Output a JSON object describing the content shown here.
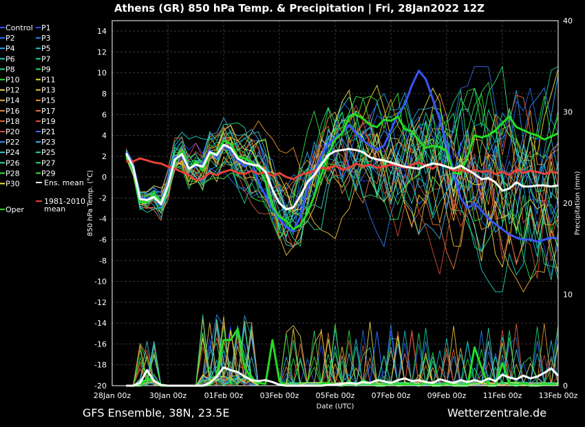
{
  "title": "Athens  (GR)  850 hPa Temp. & Precipitation | Fri, 28Jan2022 12Z",
  "footer_left": "GFS Ensemble, 38N, 23.5E",
  "footer_right": "Wetterzentrale.de",
  "colors": {
    "background": "#000000",
    "ens_mean": "#ffffff",
    "climate_mean": "#e8403a",
    "oper": "#22dd22",
    "control": "#3a56ff"
  },
  "chart_data": {
    "type": "line",
    "title": "Athens  (GR)  850 hPa Temp. & Precipitation | Fri, 28Jan2022 12Z",
    "xlabel": "Date (UTC)",
    "ylabel": "850 hPa Temp. (°C)",
    "y2label": "Precipitation (mm)",
    "grid": true,
    "legend_placement": "left, outside plot",
    "ylim": [
      -20,
      15
    ],
    "y2lim": [
      0,
      40
    ],
    "xlim": [
      "2022-01-28 00:00",
      "2022-02-13 00:00"
    ],
    "x_ticks": [
      "28Jan 00z",
      "30Jan 00z",
      "01Feb 00z",
      "03Feb 00z",
      "05Feb 00z",
      "07Feb 00z",
      "09Feb 00z",
      "11Feb 00z",
      "13Feb 00z"
    ],
    "y_ticks": [
      "14",
      "12",
      "10",
      "8",
      "6",
      "4",
      "2",
      "0",
      "-2",
      "-4",
      "-6",
      "-8",
      "-10",
      "-12",
      "-14",
      "-16",
      "-18",
      "-20"
    ],
    "y2_ticks": [
      "40",
      "30",
      "20",
      "10",
      "0"
    ],
    "legend": [
      {
        "label": "Control",
        "color": "#3a56ff"
      },
      {
        "label": "P1",
        "color": "#2b4bff"
      },
      {
        "label": "P2",
        "color": "#1e6cf0"
      },
      {
        "label": "P3",
        "color": "#2a84f7"
      },
      {
        "label": "P4",
        "color": "#28a5ee"
      },
      {
        "label": "P5",
        "color": "#21bfe0"
      },
      {
        "label": "P6",
        "color": "#19d3c4"
      },
      {
        "label": "P7",
        "color": "#17d6a2"
      },
      {
        "label": "P8",
        "color": "#1fdc82"
      },
      {
        "label": "P9",
        "color": "#27e05f"
      },
      {
        "label": "P10",
        "color": "#35e53c"
      },
      {
        "label": "P11",
        "color": "#f2e82a"
      },
      {
        "label": "P12",
        "color": "#f5d64e"
      },
      {
        "label": "P13",
        "color": "#f2c43a"
      },
      {
        "label": "P14",
        "color": "#f0b03a"
      },
      {
        "label": "P15",
        "color": "#f29a2e"
      },
      {
        "label": "P16",
        "color": "#ee8a48"
      },
      {
        "label": "P17",
        "color": "#ec7a3c"
      },
      {
        "label": "P18",
        "color": "#e9673a"
      },
      {
        "label": "P19",
        "color": "#e05438"
      },
      {
        "label": "P20",
        "color": "#d84a3a"
      },
      {
        "label": "P21",
        "color": "#3a6cf0"
      },
      {
        "label": "P22",
        "color": "#3d8cf2"
      },
      {
        "label": "P23",
        "color": "#40b0f0"
      },
      {
        "label": "P24",
        "color": "#3ccbd8"
      },
      {
        "label": "P25",
        "color": "#30d8b0"
      },
      {
        "label": "P26",
        "color": "#2adc90"
      },
      {
        "label": "P27",
        "color": "#2ee070"
      },
      {
        "label": "P28",
        "color": "#36e250"
      },
      {
        "label": "P29",
        "color": "#3ee432"
      },
      {
        "label": "P30",
        "color": "#f4e84a"
      },
      {
        "label": "Ens. mean",
        "color": "#ffffff"
      },
      {
        "label": "1981-2010 mean",
        "color": "#e8403a"
      },
      {
        "label": "Oper",
        "color": "#22dd22"
      }
    ],
    "days_axis_unit": "days after 28Jan 00z",
    "series": [
      {
        "name": "Ens. mean",
        "role": "temp",
        "x": [
          0.5,
          0.75,
          1,
          1.25,
          1.5,
          1.75,
          2,
          2.25,
          2.5,
          2.75,
          3,
          3.25,
          3.5,
          3.75,
          4,
          4.25,
          4.5,
          4.75,
          5,
          5.25,
          5.5,
          5.75,
          6,
          6.25,
          6.5,
          6.75,
          7,
          7.25,
          7.5,
          7.75,
          8,
          8.25,
          8.5,
          8.75,
          9,
          9.25,
          9.5,
          9.75,
          10,
          10.25,
          10.5,
          10.75,
          11,
          11.25,
          11.5,
          11.75,
          12,
          12.25,
          12.5,
          12.75,
          13,
          13.25,
          13.5,
          13.75,
          14,
          14.25,
          14.5,
          14.75,
          15,
          15.25,
          15.5,
          15.75,
          16
        ],
        "y": [
          2.3,
          1.0,
          -2.1,
          -2.2,
          -1.9,
          -2.6,
          -0.8,
          1.7,
          2.2,
          0.8,
          1.2,
          1.0,
          2.4,
          2.1,
          3.1,
          2.8,
          1.8,
          1.4,
          1.2,
          1.1,
          0.5,
          -1.2,
          -2.5,
          -3.1,
          -2.9,
          -1.8,
          -0.5,
          0.2,
          1.2,
          2.1,
          2.5,
          2.6,
          2.7,
          2.6,
          2.4,
          1.9,
          1.7,
          1.6,
          1.4,
          1.2,
          1.0,
          0.9,
          0.8,
          1.1,
          1.3,
          1.2,
          1.0,
          0.8,
          1.1,
          0.7,
          0.3,
          -0.2,
          -0.1,
          -0.5,
          -1.3,
          -1.1,
          -0.5,
          -0.9,
          -0.9,
          -0.8,
          -0.8,
          -0.9,
          -0.8
        ]
      },
      {
        "name": "1981-2010 mean",
        "role": "temp",
        "x": [
          0.5,
          0.75,
          1,
          1.25,
          1.5,
          1.75,
          2,
          2.25,
          2.5,
          2.75,
          3,
          3.25,
          3.5,
          3.75,
          4,
          4.25,
          4.5,
          4.75,
          5,
          5.25,
          5.5,
          5.75,
          6,
          6.25,
          6.5,
          6.75,
          7,
          7.25,
          7.5,
          7.75,
          8,
          8.25,
          8.5,
          8.75,
          9,
          9.25,
          9.5,
          9.75,
          10,
          10.25,
          10.5,
          10.75,
          11,
          11.25,
          11.5,
          11.75,
          12,
          12.25,
          12.5,
          12.75,
          13,
          13.25,
          13.5,
          13.75,
          14,
          14.25,
          14.5,
          14.75,
          15,
          15.25,
          15.5,
          15.75,
          16
        ],
        "y": [
          1.5,
          1.5,
          1.8,
          1.6,
          1.4,
          1.3,
          1.0,
          0.8,
          0.5,
          0.2,
          -0.3,
          -0.1,
          0.4,
          0.2,
          0.5,
          0.7,
          0.4,
          0.3,
          0.6,
          0.3,
          0.5,
          0.1,
          0.4,
          0.0,
          -0.2,
          0.2,
          0.4,
          0.6,
          0.9,
          0.8,
          1.1,
          0.7,
          0.9,
          1.3,
          1.0,
          1.2,
          0.9,
          1.0,
          1.2,
          1.1,
          0.9,
          1.2,
          1.4,
          1.1,
          0.8,
          1.3,
          1.0,
          0.6,
          0.7,
          0.5,
          0.7,
          0.5,
          0.6,
          0.3,
          0.5,
          0.2,
          0.7,
          0.4,
          0.6,
          0.5,
          0.3,
          0.5,
          0.4
        ]
      },
      {
        "name": "Oper",
        "role": "temp",
        "x": [
          0.5,
          0.75,
          1,
          1.25,
          1.5,
          1.75,
          2,
          2.25,
          2.5,
          2.75,
          3,
          3.25,
          3.5,
          3.75,
          4,
          4.25,
          4.5,
          4.75,
          5,
          5.25,
          5.5,
          5.75,
          6,
          6.25,
          6.5,
          6.75,
          7,
          7.25,
          7.5,
          7.75,
          8,
          8.25,
          8.5,
          8.75,
          9,
          9.25,
          9.5,
          9.75,
          10,
          10.25,
          10.5,
          10.75,
          11,
          11.25,
          11.5,
          11.75,
          12,
          12.25,
          12.5,
          12.75,
          13,
          13.25,
          13.5,
          13.75,
          14,
          14.25,
          14.5,
          14.75,
          15,
          15.25,
          15.5,
          15.75,
          16
        ],
        "y": [
          2.1,
          0.8,
          -2.4,
          -2.4,
          -1.5,
          -2.6,
          -1.0,
          1.5,
          2.5,
          0.7,
          1.5,
          0.6,
          2.2,
          2.3,
          3.5,
          3.2,
          2.0,
          1.8,
          1.4,
          0.8,
          -0.4,
          -2.8,
          -3.8,
          -4.2,
          -5.0,
          -4.6,
          -3.5,
          -1.8,
          0.2,
          2.2,
          3.6,
          4.2,
          5.8,
          6.0,
          5.6,
          5.0,
          4.8,
          5.5,
          5.4,
          5.8,
          4.6,
          4.4,
          3.5,
          2.8,
          3.0,
          2.9,
          2.5,
          0.4,
          0.3,
          2.0,
          4.0,
          3.8,
          4.0,
          4.5,
          5.2,
          5.8,
          4.8,
          4.5,
          4.2,
          4.0,
          3.6,
          3.9,
          4.2
        ]
      },
      {
        "name": "Control",
        "role": "temp",
        "x": [
          0.5,
          0.75,
          1,
          1.25,
          1.5,
          1.75,
          2,
          2.25,
          2.5,
          2.75,
          3,
          3.25,
          3.5,
          3.75,
          4,
          4.25,
          4.5,
          4.75,
          5,
          5.25,
          5.5,
          5.75,
          6,
          6.25,
          6.5,
          6.75,
          7,
          7.25,
          7.5,
          7.75,
          8,
          8.25,
          8.5,
          8.75,
          9,
          9.25,
          9.5,
          9.75,
          10,
          10.25,
          10.5,
          10.75,
          11,
          11.25,
          11.5,
          11.75,
          12,
          12.25,
          12.5,
          12.75,
          13,
          13.25,
          13.5,
          13.75,
          14,
          14.25,
          14.5,
          14.75,
          15,
          15.25,
          15.5,
          15.75,
          16
        ],
        "y": [
          2.4,
          1.2,
          -2.0,
          -2.1,
          -1.8,
          -2.8,
          -0.5,
          1.9,
          2.0,
          0.9,
          1.0,
          1.3,
          2.6,
          1.9,
          3.0,
          2.6,
          1.6,
          1.0,
          1.5,
          -0.5,
          -1.8,
          -3.0,
          -4.0,
          -4.8,
          -5.2,
          -3.8,
          -1.2,
          0.5,
          2.0,
          3.2,
          3.8,
          4.2,
          5.0,
          4.2,
          3.5,
          3.0,
          2.6,
          3.0,
          4.5,
          6.0,
          7.0,
          8.8,
          10.2,
          9.4,
          7.5,
          5.5,
          3.2,
          0.6,
          -2.0,
          -3.0,
          -2.5,
          -3.2,
          -4.0,
          -4.5,
          -5.0,
          -5.5,
          -5.8,
          -6.0,
          -6.0,
          -6.2,
          -6.0,
          -5.8,
          -5.9
        ]
      },
      {
        "name": "Ens. mean precip",
        "role": "precip",
        "x": [
          0.5,
          0.75,
          1,
          1.25,
          1.5,
          1.75,
          2,
          2.25,
          2.5,
          2.75,
          3,
          3.25,
          3.5,
          3.75,
          4,
          4.25,
          4.5,
          4.75,
          5,
          5.25,
          5.5,
          5.75,
          6,
          6.25,
          6.5,
          6.75,
          7,
          7.25,
          7.5,
          7.75,
          8,
          8.25,
          8.5,
          8.75,
          9,
          9.25,
          9.5,
          9.75,
          10,
          10.25,
          10.5,
          10.75,
          11,
          11.25,
          11.5,
          11.75,
          12,
          12.25,
          12.5,
          12.75,
          13,
          13.25,
          13.5,
          13.75,
          14,
          14.25,
          14.5,
          14.75,
          15,
          15.25,
          15.5,
          15.75,
          16
        ],
        "y": [
          0,
          0,
          0.3,
          1.7,
          0.5,
          0.1,
          0,
          0,
          0,
          0,
          0,
          0,
          0.3,
          1.0,
          2.0,
          1.7,
          1.5,
          1.0,
          0.6,
          0.5,
          0.6,
          0.4,
          0.1,
          0,
          0,
          0,
          0,
          0,
          0,
          0.1,
          0.1,
          0.2,
          0.3,
          0.2,
          0.4,
          0.3,
          0.6,
          0.5,
          0.3,
          0.6,
          0.8,
          0.5,
          0.6,
          0.4,
          0.3,
          0.7,
          0.5,
          0.3,
          0.6,
          0.4,
          0.6,
          0.4,
          0.8,
          0.5,
          1.2,
          0.9,
          0.7,
          1.1,
          0.8,
          1.0,
          1.4,
          1.9,
          1.1
        ]
      },
      {
        "name": "Oper precip",
        "role": "precip",
        "x": [
          0.5,
          0.75,
          1,
          1.25,
          1.5,
          1.75,
          2,
          2.25,
          2.5,
          2.75,
          3,
          3.25,
          3.5,
          3.75,
          4,
          4.25,
          4.5,
          4.75,
          5,
          5.25,
          5.5,
          5.75,
          6,
          6.25,
          6.5,
          6.75,
          7,
          7.25,
          7.5,
          7.75,
          8,
          8.25,
          8.5,
          8.75,
          9,
          9.25,
          9.5,
          9.75,
          10,
          10.25,
          10.5,
          10.75,
          11,
          11.25,
          11.5,
          11.75,
          12,
          12.25,
          12.5,
          12.75,
          13,
          13.25,
          13.5,
          13.75,
          14,
          14.25,
          14.5,
          14.75,
          15,
          15.25,
          15.5,
          15.75,
          16
        ],
        "y": [
          0,
          0,
          0,
          0.8,
          0.5,
          0,
          0,
          0,
          0,
          0,
          0,
          0,
          0.1,
          1.2,
          5.0,
          5.0,
          6.2,
          2.0,
          0.8,
          0.3,
          0.2,
          5.0,
          0.5,
          0,
          0,
          0,
          0,
          0,
          0.2,
          0.3,
          0.1,
          0,
          0.5,
          0,
          0.6,
          0.2,
          0,
          0,
          0.3,
          0,
          0.1,
          0.2,
          0,
          0.4,
          0,
          0,
          0.3,
          0,
          0,
          0,
          4.2,
          2.0,
          0,
          0,
          2.5,
          0.2,
          0,
          0.3,
          0,
          0,
          0.1,
          0.1,
          0.1
        ]
      }
    ]
  }
}
